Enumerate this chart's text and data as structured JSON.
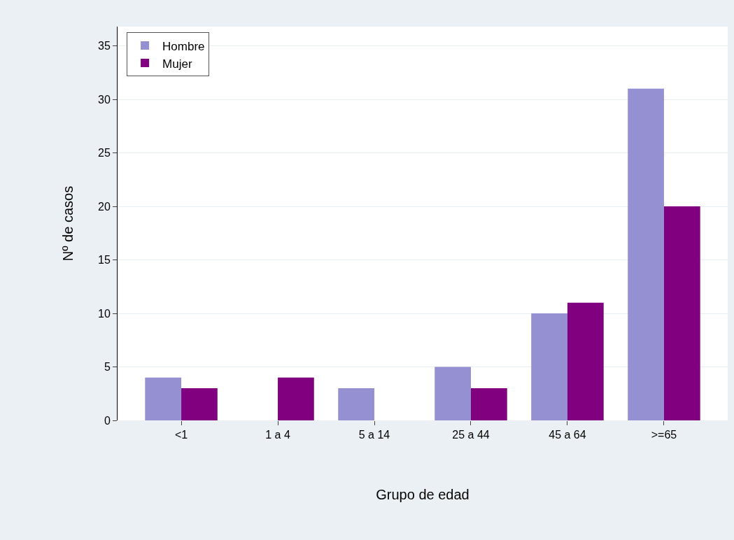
{
  "chart_data": {
    "type": "bar",
    "xlabel": "Grupo de edad",
    "ylabel": "Nº de casos",
    "categories": [
      "<1",
      "1 a 4",
      "5 a 14",
      "25 a 44",
      "45 a 64",
      ">=65"
    ],
    "series": [
      {
        "name": "Hombre",
        "color": "#9590d2",
        "values": [
          4,
          0,
          3,
          5,
          10,
          31
        ]
      },
      {
        "name": "Mujer",
        "color": "#800080",
        "values": [
          3,
          4,
          0,
          3,
          11,
          20
        ]
      }
    ],
    "ylim": [
      0,
      36.8
    ],
    "yticks": [
      0,
      5,
      10,
      15,
      20,
      25,
      30,
      35
    ],
    "grid": "y",
    "legend": "top left"
  }
}
